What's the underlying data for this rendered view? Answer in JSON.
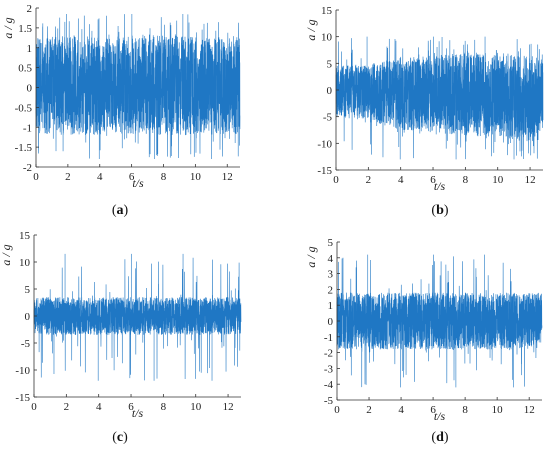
{
  "chart_data": [
    {
      "type": "line",
      "panel_label": "a",
      "xlabel": "t/s",
      "ylabel": "a / g",
      "xlim": [
        0,
        12.8
      ],
      "ylim": [
        -2,
        2
      ],
      "xticks": [
        0,
        2,
        4,
        6,
        8,
        10,
        12
      ],
      "yticks": [
        -2,
        -1.5,
        -1,
        -0.5,
        0,
        0.5,
        1,
        1.5,
        2
      ],
      "ytick_labels": [
        "-2",
        "-1.5",
        "-1",
        "-0.5",
        "0",
        "0.5",
        "1",
        "1.5",
        "2"
      ],
      "series": [
        {
          "color": "#1f77c4",
          "envelope": {
            "t": [
              0,
              2,
              4,
              6,
              8,
              10,
              12,
              12.8
            ],
            "upper": [
              1.25,
              1.3,
              1.25,
              1.35,
              1.3,
              1.3,
              1.25,
              1.3
            ],
            "lower": [
              -1.15,
              -1.2,
              -1.2,
              -1.15,
              -1.2,
              -1.2,
              -1.2,
              -1.2
            ]
          },
          "peaks": {
            "max": 1.85,
            "min": -1.8
          }
        }
      ]
    },
    {
      "type": "line",
      "panel_label": "b",
      "xlabel": "t/s",
      "ylabel": "a / g",
      "xlim": [
        0,
        12.8
      ],
      "ylim": [
        -15,
        15
      ],
      "xticks": [
        0,
        2,
        4,
        6,
        8,
        10,
        12
      ],
      "yticks": [
        -15,
        -10,
        -5,
        0,
        5,
        10,
        15
      ],
      "ytick_labels": [
        "-15",
        "-10",
        "-5",
        "0",
        "5",
        "10",
        "15"
      ],
      "series": [
        {
          "color": "#1f77c4",
          "envelope": {
            "t": [
              0,
              2,
              4,
              6,
              8,
              10,
              12,
              12.8
            ],
            "upper": [
              4.5,
              5,
              6,
              6.5,
              7,
              7,
              6.5,
              6
            ],
            "lower": [
              -5,
              -6,
              -7.5,
              -8,
              -8.5,
              -9,
              -9.5,
              -10
            ]
          },
          "peaks": {
            "max": 10,
            "min": -13
          }
        }
      ]
    },
    {
      "type": "line",
      "panel_label": "c",
      "xlabel": "t/s",
      "ylabel": "a / g",
      "xlim": [
        0,
        12.8
      ],
      "ylim": [
        -15,
        15
      ],
      "xticks": [
        0,
        2,
        4,
        6,
        8,
        10,
        12
      ],
      "yticks": [
        -15,
        -10,
        -5,
        0,
        5,
        10,
        15
      ],
      "ytick_labels": [
        "-15",
        "-10",
        "-5",
        "0",
        "5",
        "10",
        "15"
      ],
      "series": [
        {
          "color": "#1f77c4",
          "envelope": {
            "t": [
              0,
              2,
              4,
              6,
              8,
              10,
              12,
              12.8
            ],
            "upper": [
              3.5,
              3.5,
              3.5,
              3.5,
              3.5,
              3.5,
              3.5,
              3.5
            ],
            "lower": [
              -3.5,
              -3.5,
              -3.5,
              -3.5,
              -3.5,
              -3.5,
              -3.5,
              -3.5
            ]
          },
          "peaks": {
            "max": 11.5,
            "min": -12
          }
        }
      ]
    },
    {
      "type": "line",
      "panel_label": "d",
      "xlabel": "t/s",
      "ylabel": "a / g",
      "xlim": [
        0,
        12.8
      ],
      "ylim": [
        -5,
        5
      ],
      "xticks": [
        0,
        2,
        4,
        6,
        8,
        10,
        12
      ],
      "yticks": [
        -5,
        -4,
        -3,
        -2,
        -1,
        0,
        1,
        2,
        3,
        4,
        5
      ],
      "ytick_labels": [
        "-5",
        "-4",
        "-3",
        "-2",
        "-1",
        "0",
        "1",
        "2",
        "3",
        "4",
        "5"
      ],
      "series": [
        {
          "color": "#1f77c4",
          "envelope": {
            "t": [
              0,
              2,
              4,
              6,
              8,
              10,
              12,
              12.8
            ],
            "upper": [
              1.8,
              1.8,
              1.8,
              1.8,
              1.8,
              1.8,
              1.8,
              1.8
            ],
            "lower": [
              -1.8,
              -1.8,
              -1.8,
              -1.8,
              -1.8,
              -1.8,
              -1.8,
              -1.8
            ]
          },
          "peaks": {
            "max": 4.2,
            "min": -4.2
          }
        }
      ]
    }
  ]
}
